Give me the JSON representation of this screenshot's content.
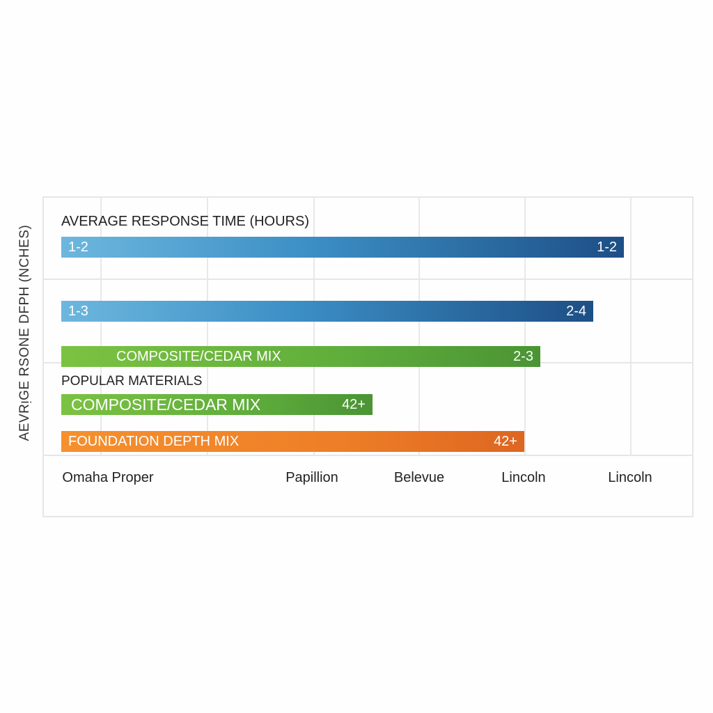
{
  "chart_data": {
    "type": "bar",
    "orientation": "horizontal",
    "ylabel": "AEVRᴉGE RSONE DFPH (NCHES)",
    "section_titles": [
      "AVERAGE RESPONSE TIME (HOURS)",
      "POPULAR MATERIALS"
    ],
    "x_tick_labels": [
      "Omaha Proper",
      "Papillion",
      "Belevue",
      "Lincoln",
      "Lincoln"
    ],
    "bars": [
      {
        "left_label": "1-2",
        "right_label": "1-2",
        "color": "#2f7fb8"
      },
      {
        "left_label": "1-3",
        "right_label": "2-4",
        "color": "#2f7fb8"
      },
      {
        "left_label": "COMPOSITE/CEDAR MIX",
        "right_label": "2-3",
        "color": "#5fad3c"
      },
      {
        "left_label": "COMPOSITE/CEDAR MIX",
        "right_label": "42+",
        "color": "#5fad3c"
      },
      {
        "left_label": "FOUNDATION DEPTH MIX",
        "right_label": "42+",
        "color": "#ee7e27"
      }
    ],
    "grid": true
  }
}
